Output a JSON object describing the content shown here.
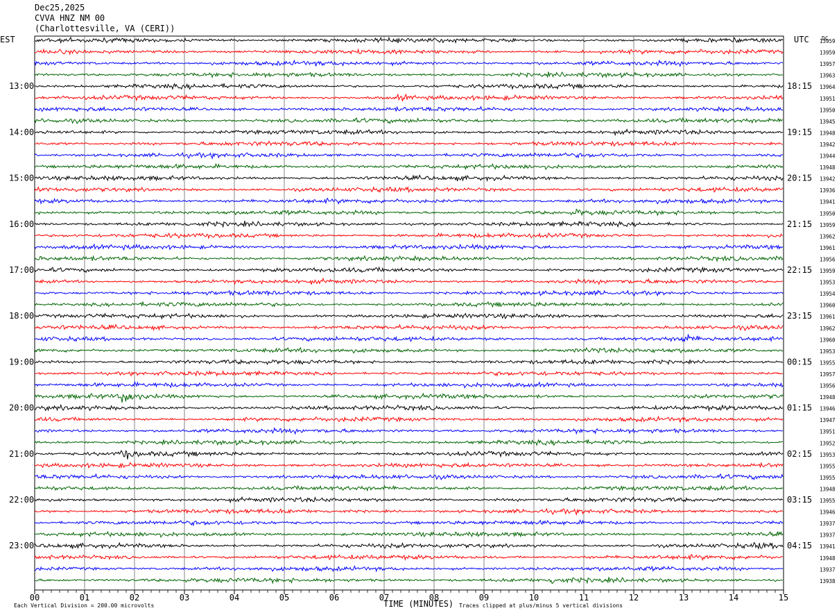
{
  "header": {
    "date": "Dec25,2025",
    "station": "CVVA HNZ NM 00",
    "location": "(Charlottesville, VA (CERI))"
  },
  "chart_data": {
    "type": "line",
    "title": "CVVA HNZ NM 00",
    "left_axis_label": "EST",
    "right_axis_label": "UTC",
    "dc_label": "DC",
    "xlabel": "TIME (MINUTES)",
    "xlim": [
      0,
      15
    ],
    "x_ticks": [
      "00",
      "01",
      "02",
      "03",
      "04",
      "05",
      "06",
      "07",
      "08",
      "09",
      "10",
      "11",
      "12",
      "13",
      "14",
      "15"
    ],
    "grid": true,
    "footer_left": "Each Vertical Division =  200.00 microvolts",
    "footer_right": "Traces clipped at plus/minus 5 vertical divisions",
    "trace_minutes": 15,
    "colors": [
      "#000000",
      "#ff0000",
      "#0000ff",
      "#006400"
    ],
    "est_labels": [
      "13:00",
      "14:00",
      "15:00",
      "16:00",
      "17:00",
      "18:00",
      "19:00",
      "20:00",
      "21:00",
      "22:00",
      "23:00"
    ],
    "utc_labels": [
      "18:15",
      "19:15",
      "20:15",
      "21:15",
      "22:15",
      "23:15",
      "00:15",
      "01:15",
      "02:15",
      "03:15",
      "04:15"
    ],
    "dc_values": [
      "13959",
      "13959",
      "13957",
      "13963",
      "13964",
      "13951",
      "13950",
      "13945",
      "13948",
      "13942",
      "13944",
      "13948",
      "13942",
      "13936",
      "13941",
      "13950",
      "13959",
      "13962",
      "13961",
      "13956",
      "13959",
      "13953",
      "13954",
      "13960",
      "13961",
      "13962",
      "13960",
      "13953",
      "13955",
      "13957",
      "13956",
      "13948",
      "13946",
      "13947",
      "13951",
      "13952",
      "13953",
      "13955",
      "13955",
      "13948",
      "13955",
      "13946",
      "13937",
      "13937",
      "13941",
      "13948",
      "13937",
      "13938"
    ],
    "events": [
      {
        "trace": 31,
        "minute": 1.75,
        "amplitude": 3.2
      },
      {
        "trace": 36,
        "minute": 1.75,
        "amplitude": 2.4
      },
      {
        "trace": 26,
        "minute": 12.95,
        "amplitude": 2.0
      },
      {
        "trace": 5,
        "minute": 7.3,
        "amplitude": 1.5
      },
      {
        "trace": 27,
        "minute": 11.05,
        "amplitude": 1.4
      },
      {
        "trace": 15,
        "minute": 10.8,
        "amplitude": 1.2
      },
      {
        "trace": 47,
        "minute": 10.35,
        "amplitude": 1.4
      },
      {
        "trace": 44,
        "minute": 14.45,
        "amplitude": 1.1
      }
    ]
  }
}
